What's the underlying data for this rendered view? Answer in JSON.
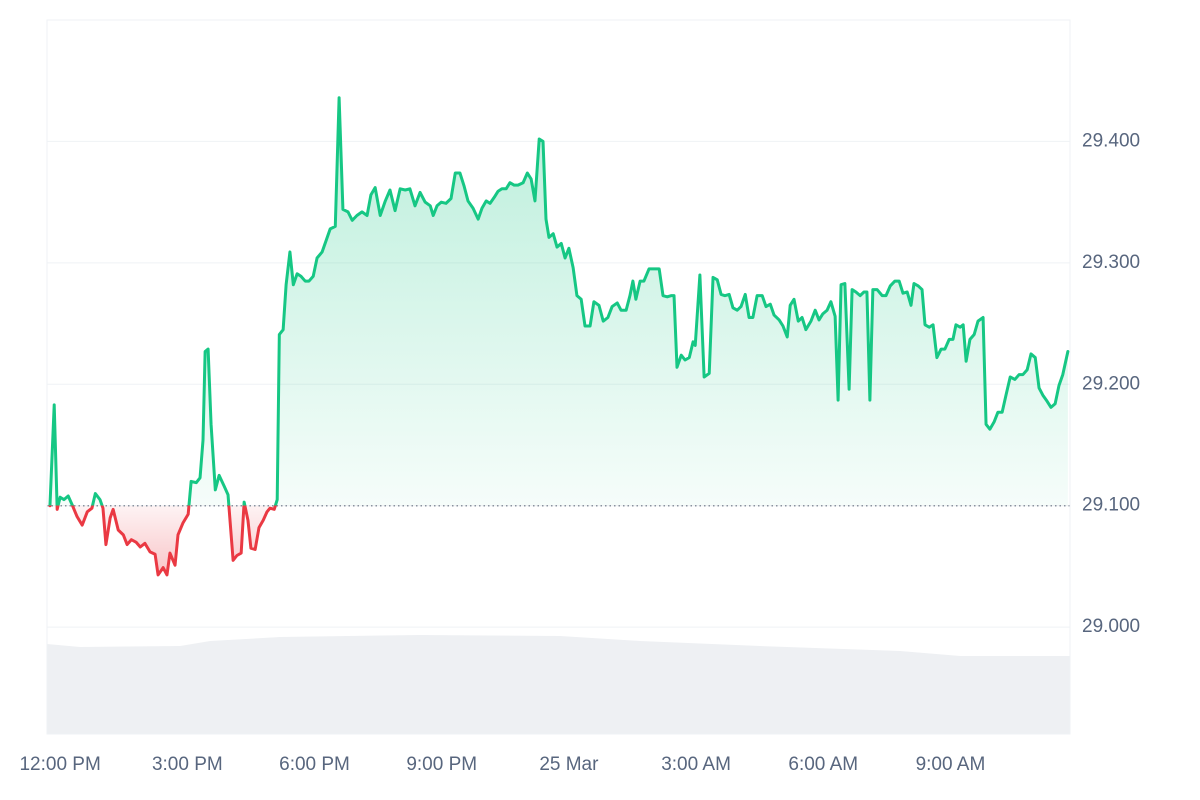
{
  "chart_data": {
    "type": "line",
    "color": "#16c784",
    "negative_color": "#ea3943",
    "reference": 29.1,
    "grid": true,
    "xlim": [
      -0.31,
      23.82
    ],
    "xticks": [
      {
        "value": 0,
        "label": "12:00 PM"
      },
      {
        "value": 3,
        "label": "3:00 PM"
      },
      {
        "value": 6,
        "label": "6:00 PM"
      },
      {
        "value": 9,
        "label": "9:00 PM"
      },
      {
        "value": 12,
        "label": "25 Mar"
      },
      {
        "value": 15,
        "label": "3:00 AM"
      },
      {
        "value": 18,
        "label": "6:00 AM"
      },
      {
        "value": 21,
        "label": "9:00 AM"
      }
    ],
    "ylim": [
      28.912,
      29.5
    ],
    "yticks": [
      {
        "value": 29.0,
        "label": "29.000"
      },
      {
        "value": 29.1,
        "label": "29.100"
      },
      {
        "value": 29.2,
        "label": "29.200"
      },
      {
        "value": 29.3,
        "label": "29.300"
      },
      {
        "value": 29.4,
        "label": "29.400"
      }
    ],
    "x": [
      -0.24,
      -0.14,
      -0.07,
      0,
      0.09,
      0.19,
      0.28,
      0.4,
      0.52,
      0.64,
      0.75,
      0.83,
      0.94,
      1.01,
      1.08,
      1.18,
      1.25,
      1.37,
      1.49,
      1.58,
      1.68,
      1.79,
      1.89,
      2.0,
      2.12,
      2.24,
      2.31,
      2.43,
      2.52,
      2.59,
      2.71,
      2.78,
      2.9,
      3.02,
      3.09,
      3.21,
      3.3,
      3.37,
      3.42,
      3.49,
      3.56,
      3.66,
      3.75,
      3.87,
      3.96,
      4.08,
      4.17,
      4.27,
      4.34,
      4.43,
      4.5,
      4.6,
      4.69,
      4.79,
      4.88,
      4.95,
      5.05,
      5.12,
      5.17,
      5.26,
      5.33,
      5.42,
      5.5,
      5.59,
      5.68,
      5.78,
      5.87,
      5.97,
      6.06,
      6.18,
      6.27,
      6.37,
      6.49,
      6.58,
      6.67,
      6.79,
      6.89,
      7.0,
      7.12,
      7.24,
      7.33,
      7.43,
      7.55,
      7.67,
      7.78,
      7.9,
      8.02,
      8.14,
      8.25,
      8.37,
      8.49,
      8.61,
      8.73,
      8.8,
      8.89,
      8.99,
      9.1,
      9.22,
      9.32,
      9.43,
      9.53,
      9.62,
      9.74,
      9.86,
      9.95,
      10.05,
      10.14,
      10.24,
      10.33,
      10.42,
      10.52,
      10.61,
      10.71,
      10.8,
      10.92,
      11.02,
      11.11,
      11.2,
      11.3,
      11.39,
      11.46,
      11.53,
      11.63,
      11.72,
      11.82,
      11.91,
      12.0,
      12.1,
      12.19,
      12.29,
      12.38,
      12.5,
      12.59,
      12.71,
      12.81,
      12.92,
      13.02,
      13.14,
      13.23,
      13.35,
      13.44,
      13.51,
      13.58,
      13.68,
      13.77,
      13.89,
      14.01,
      14.13,
      14.22,
      14.32,
      14.41,
      14.48,
      14.55,
      14.65,
      14.74,
      14.84,
      14.93,
      14.98,
      15.09,
      15.19,
      15.31,
      15.4,
      15.5,
      15.59,
      15.68,
      15.78,
      15.87,
      15.97,
      16.06,
      16.16,
      16.25,
      16.34,
      16.44,
      16.56,
      16.65,
      16.75,
      16.84,
      16.96,
      17.05,
      17.15,
      17.22,
      17.31,
      17.41,
      17.5,
      17.59,
      17.71,
      17.81,
      17.9,
      17.99,
      18.09,
      18.18,
      18.28,
      18.35,
      18.42,
      18.51,
      18.61,
      18.68,
      18.77,
      18.87,
      18.96,
      19.03,
      19.1,
      19.17,
      19.27,
      19.39,
      19.48,
      19.58,
      19.69,
      19.79,
      19.88,
      19.98,
      20.07,
      20.14,
      20.24,
      20.33,
      20.4,
      20.5,
      20.59,
      20.68,
      20.78,
      20.87,
      20.97,
      21.06,
      21.13,
      21.23,
      21.3,
      21.37,
      21.46,
      21.56,
      21.65,
      21.77,
      21.84,
      21.93,
      22.03,
      22.12,
      22.22,
      22.31,
      22.41,
      22.52,
      22.62,
      22.71,
      22.81,
      22.9,
      23.0,
      23.09,
      23.18,
      23.28,
      23.37,
      23.47,
      23.56,
      23.65,
      23.77
    ],
    "values": [
      29.1,
      29.183,
      29.097,
      29.107,
      29.105,
      29.108,
      29.101,
      29.091,
      29.084,
      29.095,
      29.098,
      29.11,
      29.105,
      29.098,
      29.068,
      29.09,
      29.097,
      29.08,
      29.076,
      29.068,
      29.072,
      29.07,
      29.066,
      29.069,
      29.062,
      29.06,
      29.043,
      29.049,
      29.043,
      29.061,
      29.051,
      29.076,
      29.086,
      29.093,
      29.12,
      29.119,
      29.123,
      29.154,
      29.227,
      29.229,
      29.167,
      29.113,
      29.125,
      29.116,
      29.109,
      29.055,
      29.059,
      29.061,
      29.103,
      29.088,
      29.065,
      29.064,
      29.082,
      29.088,
      29.095,
      29.098,
      29.097,
      29.105,
      29.241,
      29.245,
      29.282,
      29.309,
      29.282,
      29.291,
      29.289,
      29.285,
      29.285,
      29.289,
      29.304,
      29.309,
      29.318,
      29.328,
      29.33,
      29.436,
      29.344,
      29.342,
      29.335,
      29.339,
      29.342,
      29.339,
      29.356,
      29.362,
      29.339,
      29.351,
      29.36,
      29.343,
      29.361,
      29.36,
      29.361,
      29.347,
      29.358,
      29.35,
      29.347,
      29.339,
      29.347,
      29.35,
      29.349,
      29.353,
      29.374,
      29.374,
      29.363,
      29.351,
      29.345,
      29.336,
      29.345,
      29.351,
      29.349,
      29.354,
      29.359,
      29.361,
      29.361,
      29.366,
      29.364,
      29.364,
      29.366,
      29.374,
      29.369,
      29.351,
      29.402,
      29.4,
      29.336,
      29.321,
      29.324,
      29.313,
      29.316,
      29.304,
      29.312,
      29.296,
      29.273,
      29.27,
      29.248,
      29.248,
      29.268,
      29.265,
      29.252,
      29.255,
      29.264,
      29.267,
      29.261,
      29.261,
      29.273,
      29.285,
      29.27,
      29.285,
      29.285,
      29.295,
      29.295,
      29.295,
      29.273,
      29.272,
      29.273,
      29.273,
      29.214,
      29.224,
      29.22,
      29.222,
      29.235,
      29.232,
      29.29,
      29.206,
      29.209,
      29.288,
      29.286,
      29.274,
      29.273,
      29.274,
      29.263,
      29.261,
      29.264,
      29.274,
      29.255,
      29.255,
      29.273,
      29.273,
      29.264,
      29.266,
      29.257,
      29.253,
      29.248,
      29.239,
      29.265,
      29.27,
      29.252,
      29.255,
      29.245,
      29.252,
      29.261,
      29.253,
      29.258,
      29.261,
      29.268,
      29.256,
      29.187,
      29.282,
      29.283,
      29.196,
      29.278,
      29.276,
      29.273,
      29.276,
      29.276,
      29.187,
      29.278,
      29.278,
      29.273,
      29.273,
      29.281,
      29.285,
      29.285,
      29.275,
      29.276,
      29.265,
      29.283,
      29.281,
      29.278,
      29.249,
      29.247,
      29.249,
      29.222,
      29.229,
      29.229,
      29.237,
      29.237,
      29.249,
      29.247,
      29.249,
      29.219,
      29.237,
      29.241,
      29.252,
      29.255,
      29.167,
      29.163,
      29.169,
      29.177,
      29.177,
      29.191,
      29.206,
      29.204,
      29.208,
      29.208,
      29.212,
      29.225,
      29.222,
      29.197,
      29.191,
      29.186,
      29.181,
      29.184,
      29.199,
      29.208,
      29.227
    ],
    "volume": {
      "color": "#eef0f3",
      "ylim": [
        0,
        100
      ],
      "x": [
        -0.31,
        0.47,
        2.83,
        3.54,
        5.19,
        8.49,
        11.79,
        13.68,
        16.51,
        19.81,
        21.23,
        23.82
      ],
      "values": [
        90,
        87,
        88,
        93,
        97,
        99,
        98,
        93,
        88,
        83,
        78,
        78
      ]
    }
  }
}
